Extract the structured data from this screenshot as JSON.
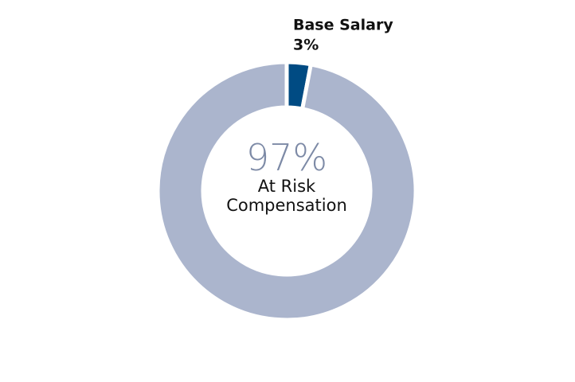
{
  "chart_data": {
    "type": "donut",
    "categories": [
      "Base Salary",
      "At Risk Compensation"
    ],
    "values": [
      3,
      97
    ],
    "value_labels": [
      "3%",
      "97%"
    ],
    "colors": [
      "#004b83",
      "#abb5cd"
    ]
  }
}
